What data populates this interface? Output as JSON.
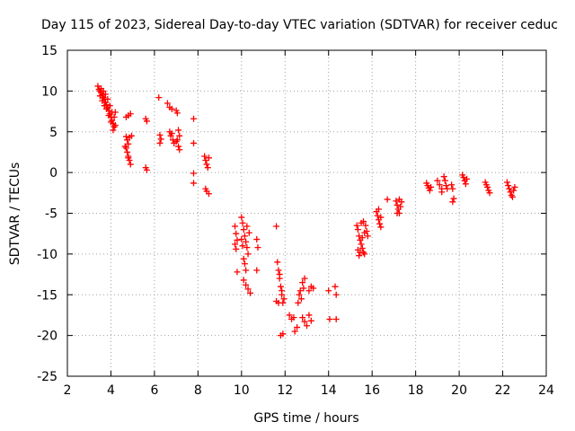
{
  "chart_data": {
    "type": "scatter",
    "title": "Day 115 of 2023, Sidereal Day-to-day VTEC variation (SDTVAR) for receiver ceduc",
    "xlabel": "GPS time / hours",
    "ylabel": "SDTVAR / TECUs",
    "xlim": [
      2,
      24
    ],
    "ylim": [
      -25,
      15
    ],
    "xticks": [
      "2",
      "4",
      "6",
      "8",
      "10",
      "12",
      "14",
      "16",
      "18",
      "20",
      "22",
      "24"
    ],
    "yticks": [
      "15",
      "10",
      "5",
      "0",
      "-5",
      "-10",
      "-15",
      "-20",
      "-25"
    ],
    "grid": true,
    "marker": "+",
    "series": [
      {
        "name": "SDTVAR",
        "color": "#ff0000",
        "points": [
          [
            3.4,
            10.6
          ],
          [
            3.45,
            10.2
          ],
          [
            3.5,
            10.0
          ],
          [
            3.55,
            9.8
          ],
          [
            3.6,
            9.5
          ],
          [
            3.65,
            9.2
          ],
          [
            3.7,
            9.0
          ],
          [
            3.75,
            8.6
          ],
          [
            3.8,
            8.3
          ],
          [
            3.85,
            8.0
          ],
          [
            3.9,
            7.6
          ],
          [
            3.95,
            7.2
          ],
          [
            4.0,
            6.8
          ],
          [
            4.05,
            6.4
          ],
          [
            4.1,
            6.0
          ],
          [
            4.15,
            5.6
          ],
          [
            3.55,
            10.3
          ],
          [
            3.65,
            10.0
          ],
          [
            3.75,
            9.6
          ],
          [
            3.85,
            9.0
          ],
          [
            3.95,
            8.2
          ],
          [
            4.05,
            7.4
          ],
          [
            4.15,
            6.8
          ],
          [
            4.2,
            7.4
          ],
          [
            3.6,
            8.8
          ],
          [
            3.7,
            8.2
          ],
          [
            3.8,
            7.8
          ],
          [
            3.9,
            7.0
          ],
          [
            4.0,
            6.2
          ],
          [
            4.1,
            5.2
          ],
          [
            4.2,
            5.8
          ],
          [
            3.5,
            9.4
          ],
          [
            4.7,
            4.4
          ],
          [
            4.75,
            4.0
          ],
          [
            4.8,
            3.5
          ],
          [
            4.7,
            3.0
          ],
          [
            4.75,
            2.5
          ],
          [
            4.8,
            2.0
          ],
          [
            4.85,
            1.5
          ],
          [
            4.9,
            1.0
          ],
          [
            4.85,
            4.3
          ],
          [
            4.65,
            3.2
          ],
          [
            4.7,
            6.8
          ],
          [
            4.8,
            7.0
          ],
          [
            4.9,
            7.2
          ],
          [
            4.95,
            4.5
          ],
          [
            4.8,
            1.8
          ],
          [
            5.6,
            6.6
          ],
          [
            5.65,
            6.3
          ],
          [
            5.6,
            0.6
          ],
          [
            5.65,
            0.3
          ],
          [
            6.2,
            9.2
          ],
          [
            6.25,
            4.6
          ],
          [
            6.3,
            4.1
          ],
          [
            6.25,
            3.6
          ],
          [
            6.6,
            8.5
          ],
          [
            6.7,
            8.0
          ],
          [
            6.8,
            7.8
          ],
          [
            6.7,
            5.0
          ],
          [
            6.75,
            4.5
          ],
          [
            6.85,
            4.0
          ],
          [
            6.9,
            3.6
          ],
          [
            6.8,
            4.8
          ],
          [
            7.0,
            7.6
          ],
          [
            7.05,
            7.3
          ],
          [
            7.1,
            5.2
          ],
          [
            7.15,
            4.5
          ],
          [
            7.05,
            4.0
          ],
          [
            7.1,
            3.2
          ],
          [
            7.15,
            2.8
          ],
          [
            7.0,
            3.8
          ],
          [
            7.8,
            6.6
          ],
          [
            7.8,
            3.6
          ],
          [
            7.8,
            -0.1
          ],
          [
            7.8,
            -1.3
          ],
          [
            8.3,
            2.0
          ],
          [
            8.35,
            1.5
          ],
          [
            8.4,
            1.0
          ],
          [
            8.45,
            0.6
          ],
          [
            8.5,
            1.8
          ],
          [
            8.35,
            -2.0
          ],
          [
            8.4,
            -2.3
          ],
          [
            8.5,
            -2.6
          ],
          [
            9.7,
            -6.6
          ],
          [
            9.75,
            -7.5
          ],
          [
            9.8,
            -8.3
          ],
          [
            9.7,
            -8.8
          ],
          [
            9.75,
            -9.4
          ],
          [
            9.8,
            -12.2
          ],
          [
            10.0,
            -5.5
          ],
          [
            10.05,
            -6.2
          ],
          [
            10.1,
            -7.0
          ],
          [
            10.15,
            -7.8
          ],
          [
            10.2,
            -8.5
          ],
          [
            10.25,
            -9.2
          ],
          [
            10.3,
            -10.0
          ],
          [
            10.1,
            -10.6
          ],
          [
            10.15,
            -11.2
          ],
          [
            10.2,
            -12.0
          ],
          [
            10.05,
            -9.0
          ],
          [
            10.1,
            -13.2
          ],
          [
            10.2,
            -13.8
          ],
          [
            10.3,
            -14.3
          ],
          [
            10.4,
            -14.8
          ],
          [
            10.25,
            -6.6
          ],
          [
            10.0,
            -8.2
          ],
          [
            10.35,
            -7.4
          ],
          [
            10.7,
            -8.2
          ],
          [
            10.75,
            -9.2
          ],
          [
            10.7,
            -12.0
          ],
          [
            11.6,
            -6.6
          ],
          [
            11.65,
            -11.0
          ],
          [
            11.7,
            -12.0
          ],
          [
            11.75,
            -13.0
          ],
          [
            11.8,
            -14.0
          ],
          [
            11.85,
            -15.0
          ],
          [
            11.9,
            -16.0
          ],
          [
            11.75,
            -12.5
          ],
          [
            11.85,
            -14.5
          ],
          [
            11.95,
            -15.5
          ],
          [
            11.6,
            -15.8
          ],
          [
            11.7,
            -16.0
          ],
          [
            11.8,
            -20.0
          ],
          [
            11.9,
            -19.8
          ],
          [
            12.2,
            -17.5
          ],
          [
            12.3,
            -18.0
          ],
          [
            12.4,
            -17.8
          ],
          [
            12.45,
            -19.5
          ],
          [
            12.55,
            -19.0
          ],
          [
            12.6,
            -16.0
          ],
          [
            12.65,
            -15.0
          ],
          [
            12.7,
            -14.5
          ],
          [
            12.8,
            -13.5
          ],
          [
            12.9,
            -13.0
          ],
          [
            12.75,
            -15.5
          ],
          [
            12.85,
            -14.2
          ],
          [
            12.8,
            -17.8
          ],
          [
            12.9,
            -18.3
          ],
          [
            13.0,
            -18.8
          ],
          [
            13.1,
            -17.5
          ],
          [
            13.2,
            -18.2
          ],
          [
            13.1,
            -14.5
          ],
          [
            13.2,
            -14.0
          ],
          [
            13.3,
            -14.2
          ],
          [
            14.0,
            -14.5
          ],
          [
            14.05,
            -18.0
          ],
          [
            14.3,
            -14.0
          ],
          [
            14.35,
            -15.0
          ],
          [
            14.35,
            -18.0
          ],
          [
            15.3,
            -6.5
          ],
          [
            15.35,
            -7.0
          ],
          [
            15.4,
            -7.8
          ],
          [
            15.45,
            -8.3
          ],
          [
            15.5,
            -8.8
          ],
          [
            15.55,
            -9.3
          ],
          [
            15.6,
            -9.8
          ],
          [
            15.65,
            -10.0
          ],
          [
            15.4,
            -10.2
          ],
          [
            15.35,
            -9.5
          ],
          [
            15.5,
            -6.2
          ],
          [
            15.6,
            -6.0
          ],
          [
            15.7,
            -6.5
          ],
          [
            15.75,
            -7.2
          ],
          [
            15.8,
            -7.8
          ],
          [
            15.45,
            -9.8
          ],
          [
            15.55,
            -8.0
          ],
          [
            15.65,
            -7.4
          ],
          [
            16.2,
            -4.8
          ],
          [
            16.25,
            -5.3
          ],
          [
            16.3,
            -5.8
          ],
          [
            16.35,
            -6.3
          ],
          [
            16.4,
            -6.7
          ],
          [
            16.3,
            -4.5
          ],
          [
            16.4,
            -5.5
          ],
          [
            16.7,
            -3.3
          ],
          [
            17.1,
            -3.5
          ],
          [
            17.15,
            -4.0
          ],
          [
            17.2,
            -4.5
          ],
          [
            17.25,
            -5.0
          ],
          [
            17.3,
            -4.2
          ],
          [
            17.35,
            -3.6
          ],
          [
            17.25,
            -3.3
          ],
          [
            17.15,
            -5.0
          ],
          [
            18.5,
            -1.3
          ],
          [
            18.55,
            -1.6
          ],
          [
            18.6,
            -1.9
          ],
          [
            18.65,
            -2.2
          ],
          [
            18.7,
            -1.8
          ],
          [
            19.0,
            -1.0
          ],
          [
            19.1,
            -1.5
          ],
          [
            19.2,
            -2.0
          ],
          [
            19.3,
            -0.5
          ],
          [
            19.35,
            -1.0
          ],
          [
            19.4,
            -1.6
          ],
          [
            19.45,
            -2.0
          ],
          [
            19.2,
            -2.4
          ],
          [
            19.65,
            -1.5
          ],
          [
            19.7,
            -2.0
          ],
          [
            19.75,
            -3.2
          ],
          [
            19.7,
            -3.6
          ],
          [
            20.15,
            -0.3
          ],
          [
            20.2,
            -0.6
          ],
          [
            20.25,
            -1.0
          ],
          [
            20.3,
            -1.4
          ],
          [
            20.35,
            -0.8
          ],
          [
            21.2,
            -1.2
          ],
          [
            21.25,
            -1.5
          ],
          [
            21.3,
            -1.8
          ],
          [
            21.35,
            -2.2
          ],
          [
            21.4,
            -2.5
          ],
          [
            22.2,
            -1.2
          ],
          [
            22.25,
            -1.6
          ],
          [
            22.3,
            -2.0
          ],
          [
            22.35,
            -2.4
          ],
          [
            22.4,
            -2.8
          ],
          [
            22.45,
            -3.0
          ],
          [
            22.5,
            -2.2
          ],
          [
            22.55,
            -1.8
          ]
        ]
      }
    ]
  }
}
